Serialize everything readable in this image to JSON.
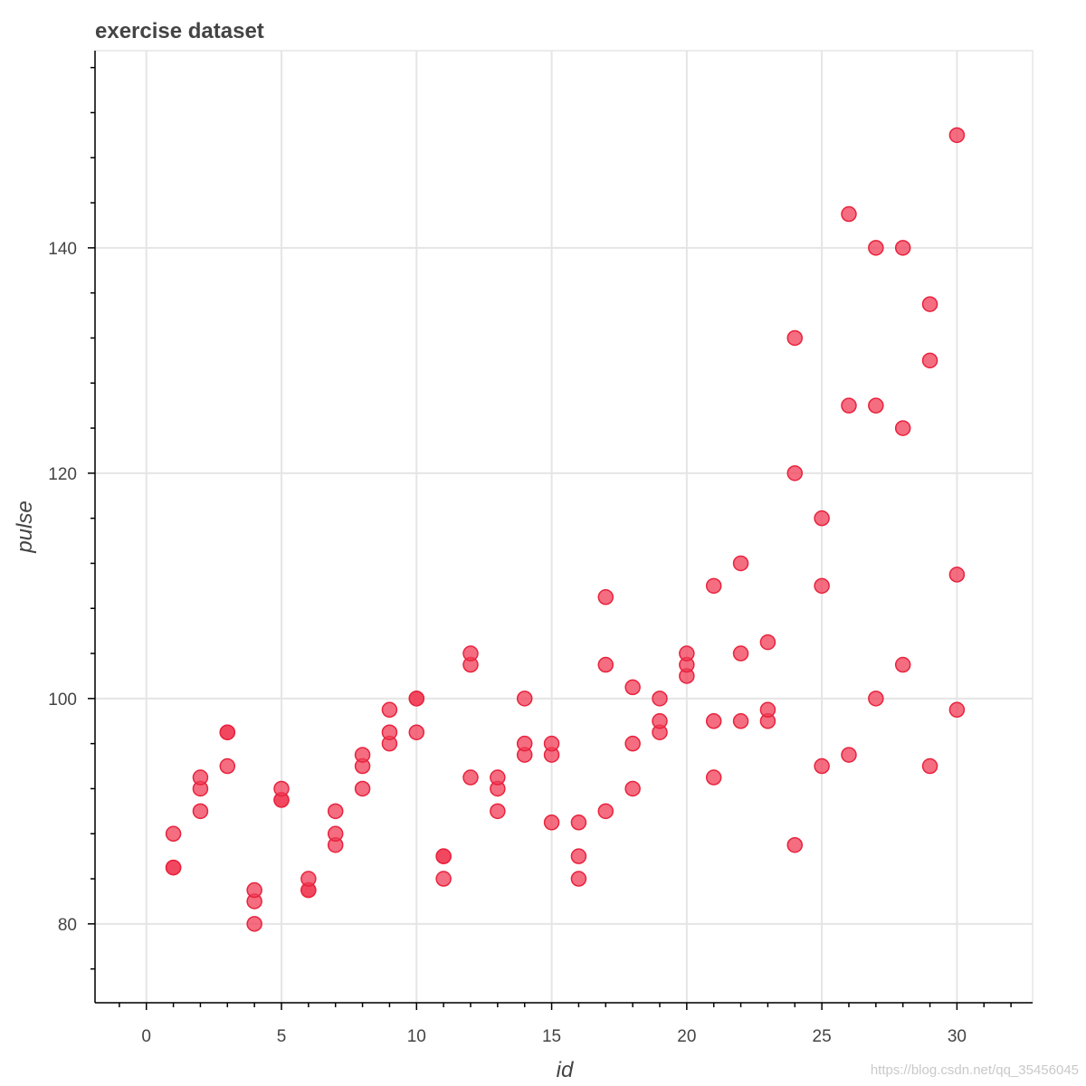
{
  "chart_data": {
    "type": "scatter",
    "title": "exercise dataset",
    "xlabel": "id",
    "ylabel": "pulse",
    "xlim": [
      -1.9,
      32.8
    ],
    "ylim": [
      73,
      157.5
    ],
    "x_ticks": [
      0,
      5,
      10,
      15,
      20,
      25,
      30
    ],
    "y_ticks": [
      80,
      100,
      120,
      140
    ],
    "grid": true,
    "legend": "none",
    "marker_color": "#f03c55",
    "marker_edge": "#e8223d",
    "points": [
      {
        "x": 1,
        "y": 85
      },
      {
        "x": 1,
        "y": 85
      },
      {
        "x": 1,
        "y": 88
      },
      {
        "x": 2,
        "y": 90
      },
      {
        "x": 2,
        "y": 92
      },
      {
        "x": 2,
        "y": 93
      },
      {
        "x": 3,
        "y": 97
      },
      {
        "x": 3,
        "y": 97
      },
      {
        "x": 3,
        "y": 94
      },
      {
        "x": 4,
        "y": 80
      },
      {
        "x": 4,
        "y": 82
      },
      {
        "x": 4,
        "y": 83
      },
      {
        "x": 5,
        "y": 91
      },
      {
        "x": 5,
        "y": 91
      },
      {
        "x": 5,
        "y": 92
      },
      {
        "x": 6,
        "y": 83
      },
      {
        "x": 6,
        "y": 83
      },
      {
        "x": 6,
        "y": 84
      },
      {
        "x": 7,
        "y": 87
      },
      {
        "x": 7,
        "y": 88
      },
      {
        "x": 7,
        "y": 90
      },
      {
        "x": 8,
        "y": 92
      },
      {
        "x": 8,
        "y": 94
      },
      {
        "x": 8,
        "y": 95
      },
      {
        "x": 9,
        "y": 96
      },
      {
        "x": 9,
        "y": 97
      },
      {
        "x": 9,
        "y": 99
      },
      {
        "x": 10,
        "y": 100
      },
      {
        "x": 10,
        "y": 100
      },
      {
        "x": 10,
        "y": 97
      },
      {
        "x": 11,
        "y": 84
      },
      {
        "x": 11,
        "y": 86
      },
      {
        "x": 11,
        "y": 86
      },
      {
        "x": 12,
        "y": 93
      },
      {
        "x": 12,
        "y": 103
      },
      {
        "x": 12,
        "y": 104
      },
      {
        "x": 13,
        "y": 90
      },
      {
        "x": 13,
        "y": 92
      },
      {
        "x": 13,
        "y": 93
      },
      {
        "x": 14,
        "y": 95
      },
      {
        "x": 14,
        "y": 96
      },
      {
        "x": 14,
        "y": 100
      },
      {
        "x": 15,
        "y": 89
      },
      {
        "x": 15,
        "y": 95
      },
      {
        "x": 15,
        "y": 96
      },
      {
        "x": 16,
        "y": 84
      },
      {
        "x": 16,
        "y": 86
      },
      {
        "x": 16,
        "y": 89
      },
      {
        "x": 17,
        "y": 90
      },
      {
        "x": 17,
        "y": 103
      },
      {
        "x": 17,
        "y": 109
      },
      {
        "x": 18,
        "y": 92
      },
      {
        "x": 18,
        "y": 96
      },
      {
        "x": 18,
        "y": 101
      },
      {
        "x": 19,
        "y": 97
      },
      {
        "x": 19,
        "y": 98
      },
      {
        "x": 19,
        "y": 100
      },
      {
        "x": 20,
        "y": 102
      },
      {
        "x": 20,
        "y": 103
      },
      {
        "x": 20,
        "y": 104
      },
      {
        "x": 21,
        "y": 93
      },
      {
        "x": 21,
        "y": 98
      },
      {
        "x": 21,
        "y": 110
      },
      {
        "x": 22,
        "y": 98
      },
      {
        "x": 22,
        "y": 104
      },
      {
        "x": 22,
        "y": 112
      },
      {
        "x": 23,
        "y": 98
      },
      {
        "x": 23,
        "y": 99
      },
      {
        "x": 23,
        "y": 105
      },
      {
        "x": 24,
        "y": 87
      },
      {
        "x": 24,
        "y": 120
      },
      {
        "x": 24,
        "y": 132
      },
      {
        "x": 25,
        "y": 94
      },
      {
        "x": 25,
        "y": 110
      },
      {
        "x": 25,
        "y": 116
      },
      {
        "x": 26,
        "y": 95
      },
      {
        "x": 26,
        "y": 126
      },
      {
        "x": 26,
        "y": 143
      },
      {
        "x": 27,
        "y": 100
      },
      {
        "x": 27,
        "y": 126
      },
      {
        "x": 27,
        "y": 140
      },
      {
        "x": 28,
        "y": 103
      },
      {
        "x": 28,
        "y": 124
      },
      {
        "x": 28,
        "y": 140
      },
      {
        "x": 29,
        "y": 94
      },
      {
        "x": 29,
        "y": 130
      },
      {
        "x": 29,
        "y": 135
      },
      {
        "x": 30,
        "y": 99
      },
      {
        "x": 30,
        "y": 111
      },
      {
        "x": 30,
        "y": 150
      }
    ]
  },
  "watermark": "https://blog.csdn.net/qq_35456045"
}
